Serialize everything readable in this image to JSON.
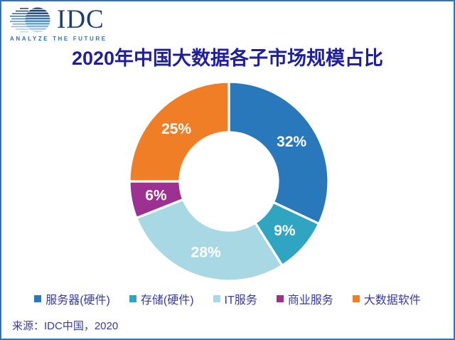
{
  "logo": {
    "brand": "IDC",
    "tagline": "ANALYZE THE FUTURE"
  },
  "title": "2020年中国大数据各子市场规模占比",
  "source": "来源：IDC中国，2020",
  "colors": {
    "border": "#2E75B6",
    "title_text": "#1F1F9E",
    "body_text": "#3939A3",
    "label_text": "#FFFFFF"
  },
  "chart_data": {
    "type": "pie",
    "subtype": "donut",
    "title": "2020年中国大数据各子市场规模占比",
    "start_angle_deg": 0,
    "direction": "clockwise",
    "inner_radius_ratio": 0.49,
    "legend_position": "bottom",
    "data_label_format": "{value}%",
    "segments": [
      {
        "label": "服务器(硬件)",
        "value_pct": 32,
        "color": "#2A78BC"
      },
      {
        "label": "存储(硬件)",
        "value_pct": 9,
        "color": "#2FA5C1"
      },
      {
        "label": "IT服务",
        "value_pct": 28,
        "color": "#A8D8E4"
      },
      {
        "label": "商业服务",
        "value_pct": 6,
        "color": "#9C3192"
      },
      {
        "label": "大数据软件",
        "value_pct": 25,
        "color": "#F07E26"
      }
    ]
  }
}
